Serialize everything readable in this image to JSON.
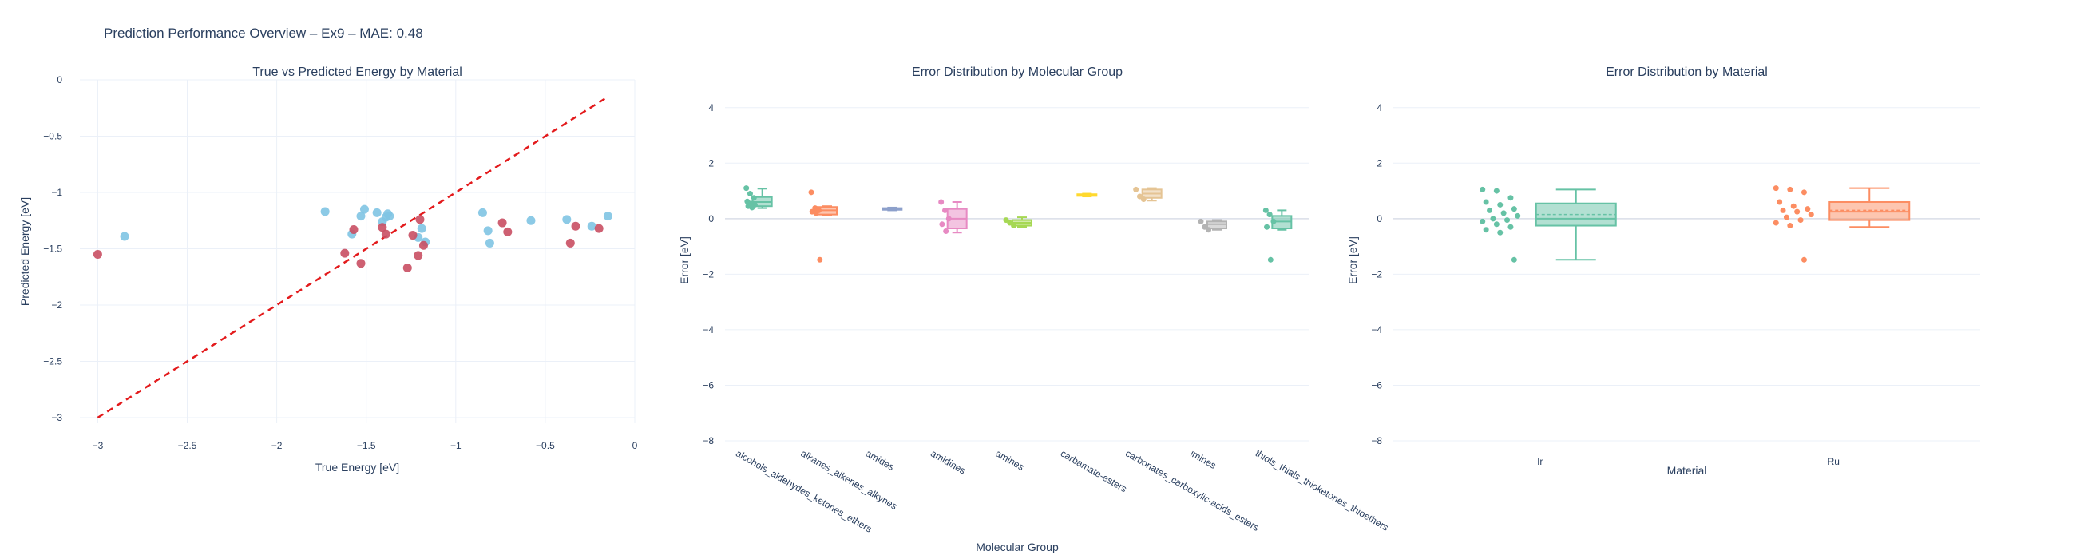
{
  "title": "Prediction Performance Overview – Ex9 – MAE: 0.48",
  "colors": {
    "Ir": "#7fc4e3",
    "Ru": "#c94f63",
    "diagonal": "#e31a1c",
    "groups": [
      "#66c2a5",
      "#fc8d62",
      "#8da0cb",
      "#e78ac3",
      "#a6d854",
      "#ffd92f",
      "#e5c494",
      "#b3b3b3",
      "#66c2a5"
    ],
    "materials": [
      "#66c2a5",
      "#fc8d62"
    ]
  },
  "chart_data": [
    {
      "type": "scatter",
      "title": "True vs Predicted Energy by Material",
      "xlabel": "True Energy [eV]",
      "ylabel": "Predicted Energy [eV]",
      "xlim": [
        -3.1,
        0
      ],
      "ylim": [
        -3.05,
        0
      ],
      "xticks": [
        -3,
        -2.5,
        -2,
        -1.5,
        -1,
        -0.5,
        0
      ],
      "xtick_labels": [
        "−3",
        "−2.5",
        "−2",
        "−1.5",
        "−1",
        "−0.5",
        "0"
      ],
      "yticks": [
        0,
        -0.5,
        -1,
        -1.5,
        -2,
        -2.5,
        -3
      ],
      "ytick_labels": [
        "0",
        "−0.5",
        "−1",
        "−1.5",
        "−2",
        "−2.5",
        "−3"
      ],
      "diagonal": [
        [
          -3.0,
          -3.0
        ],
        [
          -0.16,
          -0.16
        ]
      ],
      "series": [
        {
          "material": "Ir",
          "points": [
            [
              -2.85,
              -1.39
            ],
            [
              -1.73,
              -1.17
            ],
            [
              -1.58,
              -1.37
            ],
            [
              -1.53,
              -1.21
            ],
            [
              -1.51,
              -1.15
            ],
            [
              -1.44,
              -1.18
            ],
            [
              -1.41,
              -1.26
            ],
            [
              -1.39,
              -1.22
            ],
            [
              -1.38,
              -1.19
            ],
            [
              -1.37,
              -1.21
            ],
            [
              -1.21,
              -1.4
            ],
            [
              -1.19,
              -1.32
            ],
            [
              -1.17,
              -1.44
            ],
            [
              -0.85,
              -1.18
            ],
            [
              -0.82,
              -1.34
            ],
            [
              -0.81,
              -1.45
            ],
            [
              -0.58,
              -1.25
            ],
            [
              -0.38,
              -1.24
            ],
            [
              -0.24,
              -1.3
            ],
            [
              -0.15,
              -1.21
            ]
          ]
        },
        {
          "material": "Ru",
          "points": [
            [
              -3.0,
              -1.55
            ],
            [
              -1.62,
              -1.54
            ],
            [
              -1.57,
              -1.33
            ],
            [
              -1.53,
              -1.63
            ],
            [
              -1.41,
              -1.31
            ],
            [
              -1.39,
              -1.37
            ],
            [
              -1.27,
              -1.67
            ],
            [
              -1.24,
              -1.38
            ],
            [
              -1.21,
              -1.56
            ],
            [
              -1.2,
              -1.24
            ],
            [
              -1.18,
              -1.47
            ],
            [
              -0.74,
              -1.27
            ],
            [
              -0.71,
              -1.35
            ],
            [
              -0.36,
              -1.45
            ],
            [
              -0.33,
              -1.3
            ],
            [
              -0.2,
              -1.32
            ]
          ]
        }
      ]
    },
    {
      "type": "box",
      "title": "Error Distribution by Molecular Group",
      "xlabel": "Molecular Group",
      "ylabel": "Error [eV]",
      "ylim": [
        -8,
        5
      ],
      "yticks": [
        4,
        2,
        0,
        -2,
        -4,
        -6,
        -8
      ],
      "ytick_labels": [
        "4",
        "2",
        "0",
        "−2",
        "−4",
        "−6",
        "−8"
      ],
      "categories": [
        "alcohols_aldehydes_ketones_ethers",
        "alkanes_alkenes_alkynes",
        "amides",
        "amidines",
        "amines",
        "carbamate-esters",
        "carbonates_carboxylic-acids_esters",
        "imines",
        "thiols_thials_thioketones_thioethers"
      ],
      "boxes": [
        {
          "q1": 0.45,
          "median": 0.6,
          "q3": 0.78,
          "lower": 0.38,
          "upper": 1.08,
          "points": [
            1.1,
            0.9,
            0.75,
            0.62,
            0.55,
            0.5,
            0.45,
            0.4
          ]
        },
        {
          "q1": 0.15,
          "median": 0.3,
          "q3": 0.42,
          "lower": 0.12,
          "upper": 0.45,
          "points": [
            0.95,
            0.38,
            0.3,
            0.25,
            0.2,
            -1.48
          ]
        },
        {
          "q1": 0.32,
          "median": 0.35,
          "q3": 0.38,
          "lower": 0.3,
          "upper": 0.4,
          "points": []
        },
        {
          "q1": -0.35,
          "median": 0.0,
          "q3": 0.35,
          "lower": -0.5,
          "upper": 0.6,
          "points": [
            0.6,
            0.3,
            0.0,
            -0.2,
            -0.45
          ]
        },
        {
          "q1": -0.25,
          "median": -0.15,
          "q3": -0.05,
          "lower": -0.3,
          "upper": 0.05,
          "points": [
            -0.05,
            -0.15,
            -0.25
          ]
        },
        {
          "q1": 0.82,
          "median": 0.85,
          "q3": 0.88,
          "lower": 0.8,
          "upper": 0.9,
          "points": []
        },
        {
          "q1": 0.75,
          "median": 0.9,
          "q3": 1.05,
          "lower": 0.65,
          "upper": 1.1,
          "points": [
            1.05,
            0.8,
            0.7
          ]
        },
        {
          "q1": -0.35,
          "median": -0.2,
          "q3": -0.1,
          "lower": -0.4,
          "upper": -0.05,
          "points": [
            -0.1,
            -0.3,
            -0.4
          ]
        },
        {
          "q1": -0.35,
          "median": -0.1,
          "q3": 0.1,
          "lower": -0.4,
          "upper": 0.3,
          "points": [
            0.3,
            0.15,
            -0.1,
            -0.3,
            -1.48
          ]
        }
      ]
    },
    {
      "type": "box",
      "title": "Error Distribution by Material",
      "xlabel": "Material",
      "ylabel": "Error [eV]",
      "ylim": [
        -8,
        5
      ],
      "yticks": [
        4,
        2,
        0,
        -2,
        -4,
        -6,
        -8
      ],
      "ytick_labels": [
        "4",
        "2",
        "0",
        "−2",
        "−4",
        "−6",
        "−8"
      ],
      "categories": [
        "Ir",
        "Ru"
      ],
      "boxes": [
        {
          "q1": -0.25,
          "median": 0.0,
          "q3": 0.55,
          "mean": 0.15,
          "lower": -1.48,
          "upper": 1.05,
          "points": [
            1.05,
            1.0,
            0.75,
            0.6,
            0.5,
            0.35,
            0.3,
            0.2,
            0.1,
            0.0,
            -0.05,
            -0.1,
            -0.2,
            -0.3,
            -0.4,
            -0.5,
            -1.48
          ]
        },
        {
          "q1": -0.05,
          "median": 0.25,
          "q3": 0.6,
          "mean": 0.3,
          "lower": -0.3,
          "upper": 1.1,
          "points": [
            1.1,
            1.05,
            0.95,
            0.6,
            0.45,
            0.35,
            0.3,
            0.25,
            0.15,
            0.05,
            -0.05,
            -0.15,
            -0.25,
            -1.48
          ]
        }
      ]
    }
  ]
}
